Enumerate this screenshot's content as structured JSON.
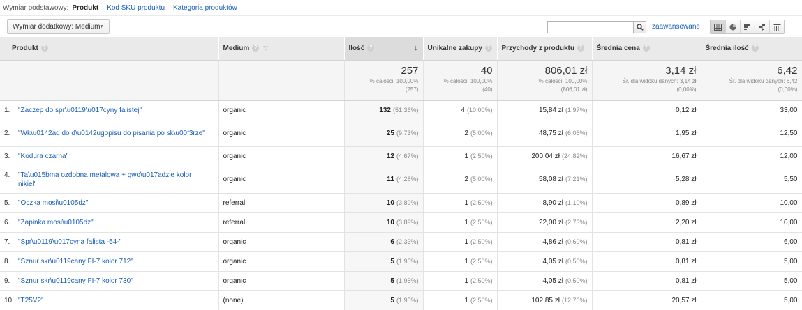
{
  "dimension_bar": {
    "label": "Wymiar podstawowy:",
    "active": "Produkt",
    "links": [
      "Kod SKU produktu",
      "Kategoria produktów"
    ]
  },
  "toolbar": {
    "secondary_dimension": "Wymiar dodatkowy: Medium",
    "search_placeholder": "",
    "advanced_link": "zaawansowane",
    "view_icons": [
      "table-view-icon",
      "pie-view-icon",
      "performance-view-icon",
      "comparison-view-icon",
      "pivot-view-icon"
    ]
  },
  "columns": {
    "product": "Produkt",
    "medium": "Medium",
    "quantity": "Ilość",
    "unique": "Unikalne zakupy",
    "revenue": "Przychody z produktu",
    "avg_price": "Średnia cena",
    "avg_qty": "Średnia ilość"
  },
  "totals": {
    "quantity": {
      "main": "257",
      "sub1": "% całości: 100,00%",
      "sub2": "(257)"
    },
    "unique": {
      "main": "40",
      "sub1": "% całości: 100,00%",
      "sub2": "(40)"
    },
    "revenue": {
      "main": "806,01 zł",
      "sub1": "% całości: 100,00%",
      "sub2": "(806,01 zł)"
    },
    "avg_price": {
      "main": "3,14 zł",
      "sub1": "Śr. dla widoku danych: 3,14 zł",
      "sub2": "(0,00%)"
    },
    "avg_qty": {
      "main": "6,42",
      "sub1": "Śr. dla widoku danych: 6,42",
      "sub2": "(0,00%)"
    }
  },
  "rows": [
    {
      "idx": "1.",
      "product": "\"Zaczep do spr\\u0119\\u017cyny falistej\"",
      "medium": "organic",
      "qty": "132",
      "qty_pct": "(51,36%)",
      "uniq": "4",
      "uniq_pct": "(10,00%)",
      "rev": "15,84 zł",
      "rev_pct": "(1,97%)",
      "avg_price": "0,12 zł",
      "avg_qty": "33,00"
    },
    {
      "idx": "2.",
      "product": "\"Wk\\u0142ad do d\\u0142ugopisu do pisania po sk\\u00f3rze\"",
      "medium": "organic",
      "qty": "25",
      "qty_pct": "(9,73%)",
      "uniq": "2",
      "uniq_pct": "(5,00%)",
      "rev": "48,75 zł",
      "rev_pct": "(6,05%)",
      "avg_price": "1,95 zł",
      "avg_qty": "12,50"
    },
    {
      "idx": "3.",
      "product": "\"Kodura czarna\"",
      "medium": "organic",
      "qty": "12",
      "qty_pct": "(4,67%)",
      "uniq": "1",
      "uniq_pct": "(2,50%)",
      "rev": "200,04 zł",
      "rev_pct": "(24,82%)",
      "avg_price": "16,67 zł",
      "avg_qty": "12,00"
    },
    {
      "idx": "4.",
      "product": "\"Ta\\u015bma ozdobna metalowa + gwo\\u017adzie kolor nikiel\"",
      "medium": "organic",
      "qty": "11",
      "qty_pct": "(4,28%)",
      "uniq": "2",
      "uniq_pct": "(5,00%)",
      "rev": "58,08 zł",
      "rev_pct": "(7,21%)",
      "avg_price": "5,28 zł",
      "avg_qty": "5,50"
    },
    {
      "idx": "5.",
      "product": "\"Oczka mosi\\u0105dz\"",
      "medium": "referral",
      "qty": "10",
      "qty_pct": "(3,89%)",
      "uniq": "1",
      "uniq_pct": "(2,50%)",
      "rev": "8,90 zł",
      "rev_pct": "(1,10%)",
      "avg_price": "0,89 zł",
      "avg_qty": "10,00"
    },
    {
      "idx": "6.",
      "product": "\"Zapinka mosi\\u0105dz\"",
      "medium": "referral",
      "qty": "10",
      "qty_pct": "(3,89%)",
      "uniq": "1",
      "uniq_pct": "(2,50%)",
      "rev": "22,00 zł",
      "rev_pct": "(2,73%)",
      "avg_price": "2,20 zł",
      "avg_qty": "10,00"
    },
    {
      "idx": "7.",
      "product": "\"Spr\\u0119\\u017cyna falista -54-\"",
      "medium": "organic",
      "qty": "6",
      "qty_pct": "(2,33%)",
      "uniq": "1",
      "uniq_pct": "(2,50%)",
      "rev": "4,86 zł",
      "rev_pct": "(0,60%)",
      "avg_price": "0,81 zł",
      "avg_qty": "6,00"
    },
    {
      "idx": "8.",
      "product": "\"Sznur skr\\u0119cany FI-7 kolor 712\"",
      "medium": "organic",
      "qty": "5",
      "qty_pct": "(1,95%)",
      "uniq": "1",
      "uniq_pct": "(2,50%)",
      "rev": "4,05 zł",
      "rev_pct": "(0,50%)",
      "avg_price": "0,81 zł",
      "avg_qty": "5,00"
    },
    {
      "idx": "9.",
      "product": "\"Sznur skr\\u0119cany FI-7 kolor 730\"",
      "medium": "organic",
      "qty": "5",
      "qty_pct": "(1,95%)",
      "uniq": "1",
      "uniq_pct": "(2,50%)",
      "rev": "4,05 zł",
      "rev_pct": "(0,50%)",
      "avg_price": "0,81 zł",
      "avg_qty": "5,00"
    },
    {
      "idx": "10.",
      "product": "\"T25V2\"",
      "medium": "(none)",
      "qty": "5",
      "qty_pct": "(1,95%)",
      "uniq": "1",
      "uniq_pct": "(2,50%)",
      "rev": "102,85 zł",
      "rev_pct": "(12,76%)",
      "avg_price": "20,57 zł",
      "avg_qty": "5,00"
    }
  ],
  "colors": {
    "link": "#1a5fb4",
    "header_bg": "#eaeaea",
    "totals_bg": "#f5f5f5"
  }
}
